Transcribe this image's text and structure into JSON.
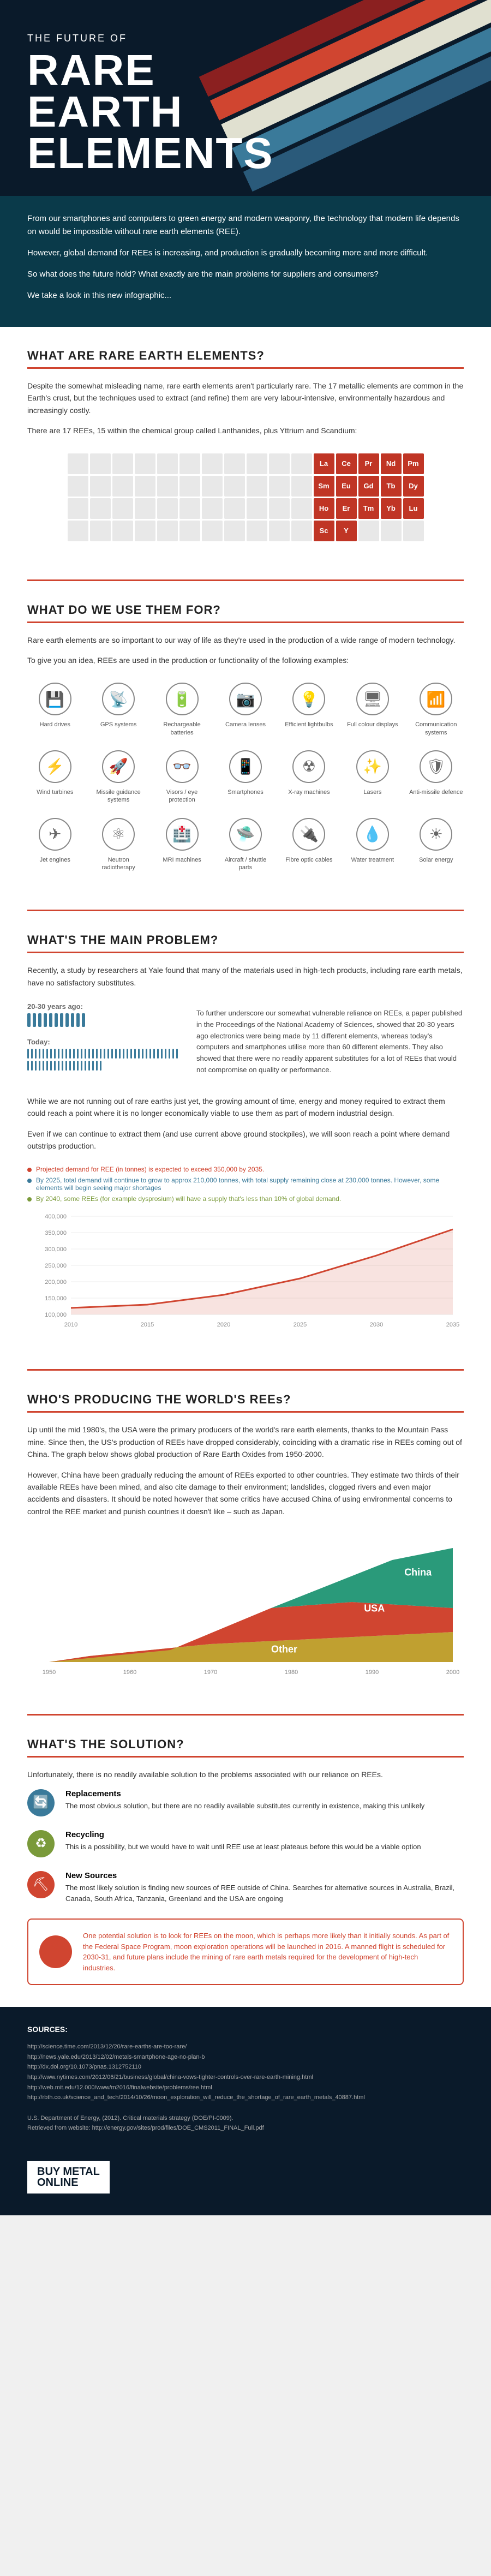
{
  "header": {
    "subtitle": "THE FUTURE OF",
    "title_l1": "RARE",
    "title_l2": "EARTH",
    "title_l3": "ELEMENTS",
    "stripe_colors": [
      "#8b2020",
      "#d04530",
      "#e0e0d0",
      "#3a7a9a",
      "#2a5a7a"
    ]
  },
  "intro": {
    "p1": "From our smartphones and computers to green energy and modern weaponry, the technology that modern life depends on would be impossible without rare earth elements (REE).",
    "p2": "However, global demand for REEs is increasing, and production is gradually becoming more and more difficult.",
    "p3": "So what does the future hold? What exactly are the main problems for suppliers and consumers?",
    "p4": "We take a look in this new infographic..."
  },
  "sec_what": {
    "title": "WHAT ARE RARE EARTH ELEMENTS?",
    "p1": "Despite the somewhat misleading name, rare earth elements aren't particularly rare. The 17 metallic elements are common in the Earth's crust, but the techniques used to extract (and refine) them are very labour-intensive, environmentally hazardous and increasingly costly.",
    "p2": "There are 17 REEs, 15 within the chemical group called Lanthanides, plus Yttrium and Scandium:",
    "elements": [
      "La",
      "Ce",
      "Pr",
      "Nd",
      "Pm",
      "Sm",
      "Eu",
      "Gd",
      "Tb",
      "Dy",
      "Ho",
      "Er",
      "Tm",
      "Yb",
      "Lu",
      "Sc",
      "Y"
    ],
    "el_color": "#c03525"
  },
  "sec_uses": {
    "title": "WHAT DO WE USE THEM FOR?",
    "p1": "Rare earth elements are so important to our way of life as they're used in the production of a wide range of modern technology.",
    "p2": "To give you an idea, REEs are used in the production or functionality of the following examples:",
    "items": [
      {
        "icon": "💾",
        "label": "Hard drives"
      },
      {
        "icon": "📡",
        "label": "GPS systems"
      },
      {
        "icon": "🔋",
        "label": "Rechargeable batteries"
      },
      {
        "icon": "📷",
        "label": "Camera lenses"
      },
      {
        "icon": "💡",
        "label": "Efficient lightbulbs"
      },
      {
        "icon": "🖥",
        "label": "Full colour displays"
      },
      {
        "icon": "📶",
        "label": "Communication systems"
      },
      {
        "icon": "⚡",
        "label": "Wind turbines"
      },
      {
        "icon": "🚀",
        "label": "Missile guidance systems"
      },
      {
        "icon": "👓",
        "label": "Visors / eye protection"
      },
      {
        "icon": "📱",
        "label": "Smartphones"
      },
      {
        "icon": "☢",
        "label": "X-ray machines"
      },
      {
        "icon": "✨",
        "label": "Lasers"
      },
      {
        "icon": "🛡",
        "label": "Anti-missile defence"
      },
      {
        "icon": "✈",
        "label": "Jet engines"
      },
      {
        "icon": "⚛",
        "label": "Neutron radiotherapy"
      },
      {
        "icon": "🏥",
        "label": "MRI machines"
      },
      {
        "icon": "🛸",
        "label": "Aircraft / shuttle parts"
      },
      {
        "icon": "🔌",
        "label": "Fibre optic cables"
      },
      {
        "icon": "💧",
        "label": "Water treatment"
      },
      {
        "icon": "☀",
        "label": "Solar energy"
      }
    ]
  },
  "sec_problem": {
    "title": "WHAT'S THE MAIN PROBLEM?",
    "p1": "Recently, a study by researchers at Yale found that many of the materials used in high-tech products, including rare earth metals, have no satisfactory substitutes.",
    "bar_old_label": "20-30 years ago:",
    "bar_old_count": 11,
    "bar_new_label": "Today:",
    "bar_new_count": 60,
    "bar_color": "#3a7a9a",
    "bar_text": "To further underscore our somewhat vulnerable reliance on REEs, a paper published in the Proceedings of the National Academy of Sciences, showed that 20-30 years ago electronics were being made by 11 different elements, whereas today's computers and smartphones utilise more than 60 different elements. They also showed that there were no readily apparent substitutes for a lot of REEs that would not compromise on quality or performance.",
    "p2": "While we are not running out of rare earths just yet, the growing amount of time, energy and money required to extract them could reach a point where it is no longer economically viable to use them as part of modern industrial design.",
    "p3": "Even if we can continue to extract them (and use current above ground stockpiles), we will soon reach a point where demand outstrips production.",
    "chart": {
      "ylabel_max": "400,000",
      "yticks": [
        "400,000",
        "350,000",
        "300,000",
        "250,000",
        "200,000",
        "150,000",
        "100,000"
      ],
      "xticks": [
        "2010",
        "2015",
        "2020",
        "2025",
        "2030",
        "2035"
      ],
      "legend": [
        {
          "color": "#d04530",
          "text": "Projected demand for REE (in tonnes) is expected to exceed 350,000 by 2035."
        },
        {
          "color": "#3a7a9a",
          "text": "By 2025, total demand will continue to grow to approx 210,000 tonnes, with total supply remaining close at 230,000 tonnes. However, some elements will begin seeing major shortages"
        },
        {
          "color": "#7a9a3a",
          "text": "By 2040, some REEs (for example dysprosium) will have a supply that's less than 10% of global demand."
        }
      ],
      "line_color": "#d04530",
      "points": [
        [
          0,
          120
        ],
        [
          0.2,
          130
        ],
        [
          0.4,
          160
        ],
        [
          0.6,
          210
        ],
        [
          0.8,
          280
        ],
        [
          1.0,
          360
        ]
      ]
    }
  },
  "sec_producing": {
    "title": "WHO'S PRODUCING THE WORLD'S REEs?",
    "p1": "Up until the mid 1980's, the USA were the primary producers of the world's rare earth elements, thanks to the Mountain Pass mine. Since then, the US's production of REEs have dropped considerably, coinciding with a dramatic rise in REEs coming out of China. The graph below shows global production of Rare Earth Oxides from 1950-2000.",
    "p2": "However, China have been gradually reducing the amount of REEs exported to other countries. They estimate two thirds of their available REEs have been mined, and also cite damage to their environment; landslides, clogged rivers and even major accidents and disasters. It should be noted however that some critics have accused China of using environmental concerns to control the REE market and punish countries it doesn't like – such as Japan.",
    "chart": {
      "xticks": [
        "1950",
        "1960",
        "1970",
        "1980",
        "1990",
        "2000"
      ],
      "series": [
        {
          "label": "China",
          "color": "#2a9a7a"
        },
        {
          "label": "USA",
          "color": "#d04530"
        },
        {
          "label": "Other",
          "color": "#c0a030"
        }
      ]
    }
  },
  "sec_solution": {
    "title": "WHAT'S THE SOLUTION?",
    "p1": "Unfortunately, there is no readily available solution to the problems associated with our reliance on REEs.",
    "items": [
      {
        "color": "#3a7a9a",
        "icon": "🔄",
        "title": "Replacements",
        "text": "The most obvious solution, but there are no readily available substitutes currently in existence, making this unlikely"
      },
      {
        "color": "#7a9a3a",
        "icon": "♻",
        "title": "Recycling",
        "text": "This is a possibility, but we would have to wait until REE use at least plateaus before this would be a viable option"
      },
      {
        "color": "#d04530",
        "icon": "⛏",
        "title": "New Sources",
        "text": "The most likely solution is finding new sources of REE outside of China. Searches for alternative sources in Australia, Brazil, Canada, South Africa, Tanzania, Greenland and the USA are ongoing"
      }
    ],
    "moon": "One potential solution is to look for REEs on the moon, which is perhaps more likely than it initially sounds. As part of the Federal Space Program, moon exploration operations will be launched in 2016. A manned flight is scheduled for 2030-31, and future plans include the mining of rare earth metals required for the development of high-tech industries."
  },
  "sources": {
    "title": "SOURCES:",
    "items": [
      "http://science.time.com/2013/12/20/rare-earths-are-too-rare/",
      "http://news.yale.edu/2013/12/02/metals-smartphone-age-no-plan-b",
      "http://dx.doi.org/10.1073/pnas.1312752110",
      "http://www.nytimes.com/2012/06/21/business/global/china-vows-tighter-controls-over-rare-earth-mining.html",
      "http://web.mit.edu/12.000/www/m2016/finalwebsite/problems/ree.html",
      "http://rbth.co.uk/science_and_tech/2014/10/26/moon_exploration_will_reduce_the_shortage_of_rare_earth_metals_40887.html",
      "",
      "U.S. Department of Energy, (2012). Critical materials strategy (DOE/PI-0009).",
      "Retrieved from website: http://energy.gov/sites/prod/files/DOE_CMS2011_FINAL_Full.pdf"
    ]
  },
  "footer": {
    "logo_l1": "BUY METAL",
    "logo_l2": "ONLINE"
  }
}
